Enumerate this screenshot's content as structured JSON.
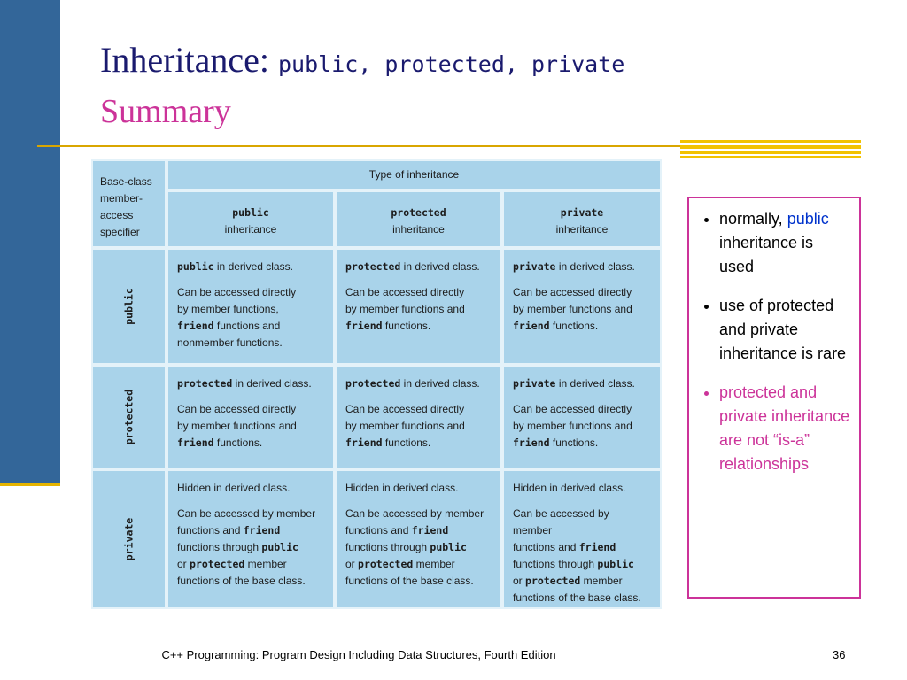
{
  "title": {
    "text": "Inheritance:",
    "code": "public, protected, private",
    "subtitle": "Summary"
  },
  "table": {
    "corner": [
      "Base-class",
      "member-",
      "access",
      "specifier"
    ],
    "caption": "Type of inheritance",
    "columns": [
      {
        "code": "public",
        "label": "inheritance"
      },
      {
        "code": "protected",
        "label": "inheritance"
      },
      {
        "code": "private",
        "label": "inheritance"
      }
    ],
    "rows": [
      {
        "label": "public",
        "cells": [
          [
            [
              [
                {
                  "code": "public"
                },
                "in derived class."
              ]
            ],
            [
              [
                "Can be accessed directly"
              ],
              [
                "by member functions,"
              ],
              [
                {
                  "code": "friend"
                },
                "functions and"
              ],
              [
                "nonmember functions."
              ]
            ]
          ],
          [
            [
              [
                {
                  "code": "protected"
                },
                "in derived class."
              ]
            ],
            [
              [
                "Can be accessed directly"
              ],
              [
                "by member functions and"
              ],
              [
                {
                  "code": "friend"
                },
                "functions."
              ]
            ]
          ],
          [
            [
              [
                {
                  "code": "private"
                },
                "in derived class."
              ]
            ],
            [
              [
                "Can be accessed directly"
              ],
              [
                "by member functions and"
              ],
              [
                {
                  "code": "friend"
                },
                "functions."
              ]
            ]
          ]
        ]
      },
      {
        "label": "protected",
        "cells": [
          [
            [
              [
                {
                  "code": "protected"
                },
                "in derived class."
              ]
            ],
            [
              [
                "Can be accessed directly"
              ],
              [
                "by member functions and"
              ],
              [
                {
                  "code": "friend"
                },
                "functions."
              ]
            ]
          ],
          [
            [
              [
                {
                  "code": "protected"
                },
                "in derived class."
              ]
            ],
            [
              [
                "Can be accessed directly"
              ],
              [
                "by member functions and"
              ],
              [
                {
                  "code": "friend"
                },
                "functions."
              ]
            ]
          ],
          [
            [
              [
                {
                  "code": "private"
                },
                "in derived class."
              ]
            ],
            [
              [
                "Can be accessed directly"
              ],
              [
                "by member functions and"
              ],
              [
                {
                  "code": "friend"
                },
                "functions."
              ]
            ]
          ]
        ]
      },
      {
        "label": "private",
        "cells": [
          [
            [
              [
                "Hidden in derived class."
              ]
            ],
            [
              [
                "Can be accessed by member"
              ],
              [
                "functions and",
                {
                  "code": "friend"
                }
              ],
              [
                "functions through",
                {
                  "code": "public"
                }
              ],
              [
                "or",
                {
                  "code": "protected"
                },
                "member"
              ],
              [
                "functions of the base class."
              ]
            ]
          ],
          [
            [
              [
                "Hidden in derived class."
              ]
            ],
            [
              [
                "Can be accessed by member"
              ],
              [
                "functions and",
                {
                  "code": "friend"
                }
              ],
              [
                "functions through",
                {
                  "code": "public"
                }
              ],
              [
                "or",
                {
                  "code": "protected"
                },
                "member"
              ],
              [
                "functions of the base class."
              ]
            ]
          ],
          [
            [
              [
                "Hidden in derived class."
              ]
            ],
            [
              [
                "Can be accessed by member"
              ],
              [
                "functions and",
                {
                  "code": "friend"
                }
              ],
              [
                "functions through",
                {
                  "code": "public"
                }
              ],
              [
                "or",
                {
                  "code": "protected"
                },
                "member"
              ],
              [
                "functions of the base class."
              ]
            ]
          ]
        ]
      }
    ]
  },
  "bullets": [
    {
      "parts": [
        "normally,",
        {
          "highlight": "public"
        },
        "inheritance is used"
      ]
    },
    {
      "parts": [
        "use of protected and private inheritance is rare"
      ]
    },
    {
      "parts": [
        "protected and private inheritance are not “is-a” relationships"
      ],
      "color": "#cc3399"
    }
  ],
  "footer": {
    "text": "C++ Programming: Program Design Including Data Structures, Fourth Edition",
    "page": "36"
  }
}
